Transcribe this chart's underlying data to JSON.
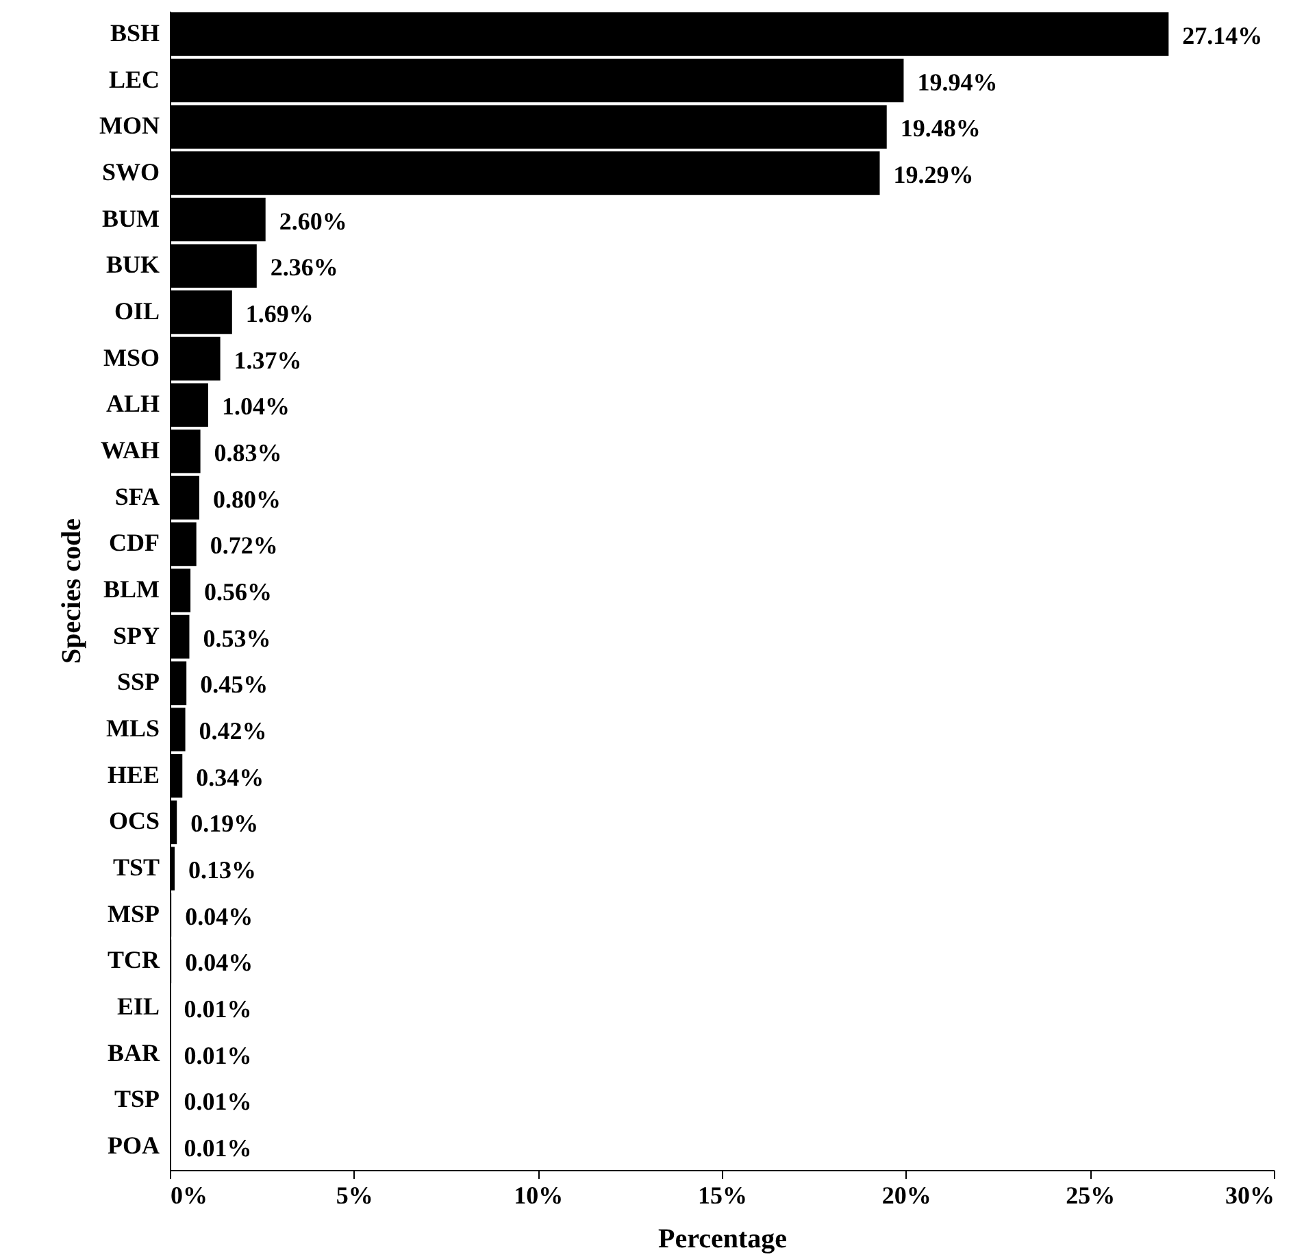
{
  "chart_data": {
    "type": "bar",
    "orientation": "horizontal",
    "xlabel": "Percentage",
    "ylabel": "Species code",
    "categories": [
      "BSH",
      "LEC",
      "MON",
      "SWO",
      "BUM",
      "BUK",
      "OIL",
      "MSO",
      "ALH",
      "WAH",
      "SFA",
      "CDF",
      "BLM",
      "SPY",
      "SSP",
      "MLS",
      "HEE",
      "OCS",
      "TST",
      "MSP",
      "TCR",
      "EIL",
      "BAR",
      "TSP",
      "POA"
    ],
    "values": [
      27.14,
      19.94,
      19.48,
      19.29,
      2.6,
      2.36,
      1.69,
      1.37,
      1.04,
      0.83,
      0.8,
      0.72,
      0.56,
      0.53,
      0.45,
      0.42,
      0.34,
      0.19,
      0.13,
      0.04,
      0.04,
      0.01,
      0.01,
      0.01,
      0.01
    ],
    "value_labels": [
      "27.14%",
      "19.94%",
      "19.48%",
      "19.29%",
      "2.60%",
      "2.36%",
      "1.69%",
      "1.37%",
      "1.04%",
      "0.83%",
      "0.80%",
      "0.72%",
      "0.56%",
      "0.53%",
      "0.45%",
      "0.42%",
      "0.34%",
      "0.19%",
      "0.13%",
      "0.04%",
      "0.04%",
      "0.01%",
      "0.01%",
      "0.01%",
      "0.01%"
    ],
    "color": "#000000",
    "xlim": [
      0,
      30
    ],
    "xticks": [
      {
        "value": 0,
        "label": "0%"
      },
      {
        "value": 5,
        "label": "5%"
      },
      {
        "value": 10,
        "label": "10%"
      },
      {
        "value": 15,
        "label": "15%"
      },
      {
        "value": 20,
        "label": "20%"
      },
      {
        "value": 25,
        "label": "25%"
      },
      {
        "value": 30,
        "label": "30%"
      }
    ],
    "grid": false
  }
}
